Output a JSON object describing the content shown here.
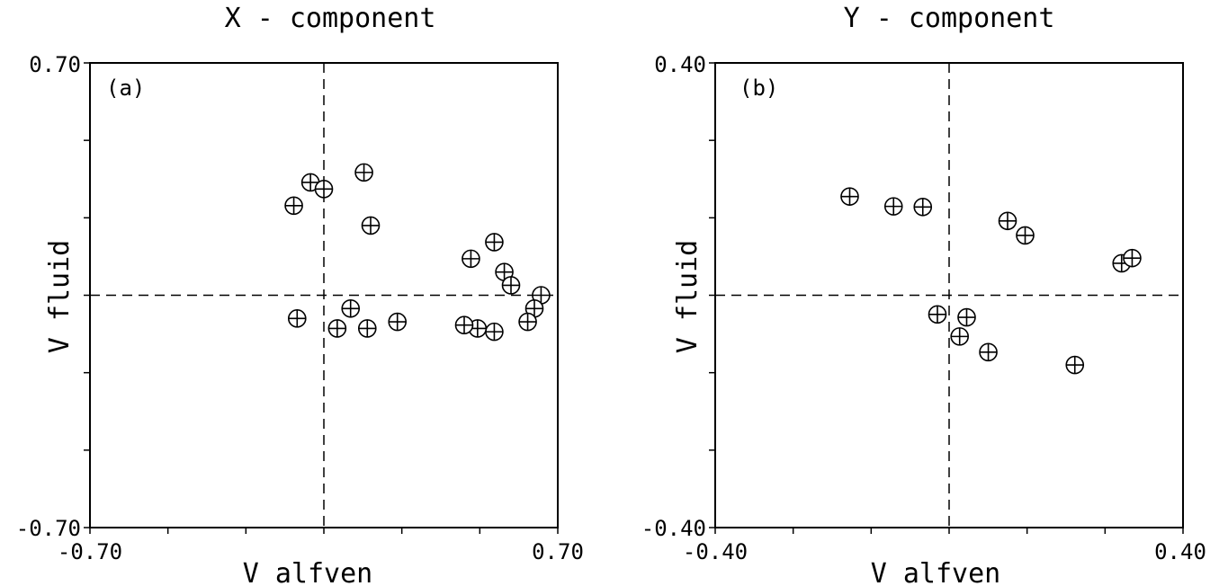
{
  "chart_data": [
    {
      "type": "scatter",
      "title": "X - component",
      "panel_label": "(a)",
      "xlabel": "V alfven",
      "ylabel": "V fluid",
      "xlim": [
        -0.7,
        0.7
      ],
      "ylim": [
        -0.7,
        0.7
      ],
      "x_tick_labels": [
        "-0.70",
        "0.70"
      ],
      "y_tick_labels": [
        "0.70",
        "-0.70"
      ],
      "reference_lines": {
        "x": 0,
        "y": 0,
        "style": "dashed"
      },
      "marker": "circle-plus",
      "points": [
        {
          "x": -0.09,
          "y": 0.27
        },
        {
          "x": -0.04,
          "y": 0.34
        },
        {
          "x": 0.0,
          "y": 0.32
        },
        {
          "x": 0.12,
          "y": 0.37
        },
        {
          "x": 0.14,
          "y": 0.21
        },
        {
          "x": 0.44,
          "y": 0.11
        },
        {
          "x": 0.51,
          "y": 0.16
        },
        {
          "x": 0.54,
          "y": 0.07
        },
        {
          "x": 0.56,
          "y": 0.03
        },
        {
          "x": 0.65,
          "y": 0.0
        },
        {
          "x": 0.63,
          "y": -0.04
        },
        {
          "x": 0.61,
          "y": -0.08
        },
        {
          "x": 0.51,
          "y": -0.11
        },
        {
          "x": 0.46,
          "y": -0.1
        },
        {
          "x": 0.42,
          "y": -0.09
        },
        {
          "x": 0.22,
          "y": -0.08
        },
        {
          "x": 0.13,
          "y": -0.1
        },
        {
          "x": 0.08,
          "y": -0.04
        },
        {
          "x": 0.04,
          "y": -0.1
        },
        {
          "x": -0.08,
          "y": -0.07
        }
      ]
    },
    {
      "type": "scatter",
      "title": "Y - component",
      "panel_label": "(b)",
      "xlabel": "V alfven",
      "ylabel": "V fluid",
      "xlim": [
        -0.4,
        0.4
      ],
      "ylim": [
        -0.4,
        0.4
      ],
      "x_tick_labels": [
        "-0.40",
        "0.40"
      ],
      "y_tick_labels": [
        "0.40",
        "-0.40"
      ],
      "reference_lines": {
        "x": 0,
        "y": 0,
        "style": "dashed"
      },
      "marker": "circle-plus",
      "points": [
        {
          "x": -0.17,
          "y": 0.17
        },
        {
          "x": -0.095,
          "y": 0.153
        },
        {
          "x": -0.045,
          "y": 0.152
        },
        {
          "x": 0.1,
          "y": 0.128
        },
        {
          "x": 0.13,
          "y": 0.103
        },
        {
          "x": 0.295,
          "y": 0.055
        },
        {
          "x": 0.313,
          "y": 0.064
        },
        {
          "x": -0.02,
          "y": -0.033
        },
        {
          "x": 0.03,
          "y": -0.038
        },
        {
          "x": 0.018,
          "y": -0.071
        },
        {
          "x": 0.067,
          "y": -0.098
        },
        {
          "x": 0.215,
          "y": -0.12
        }
      ]
    }
  ]
}
